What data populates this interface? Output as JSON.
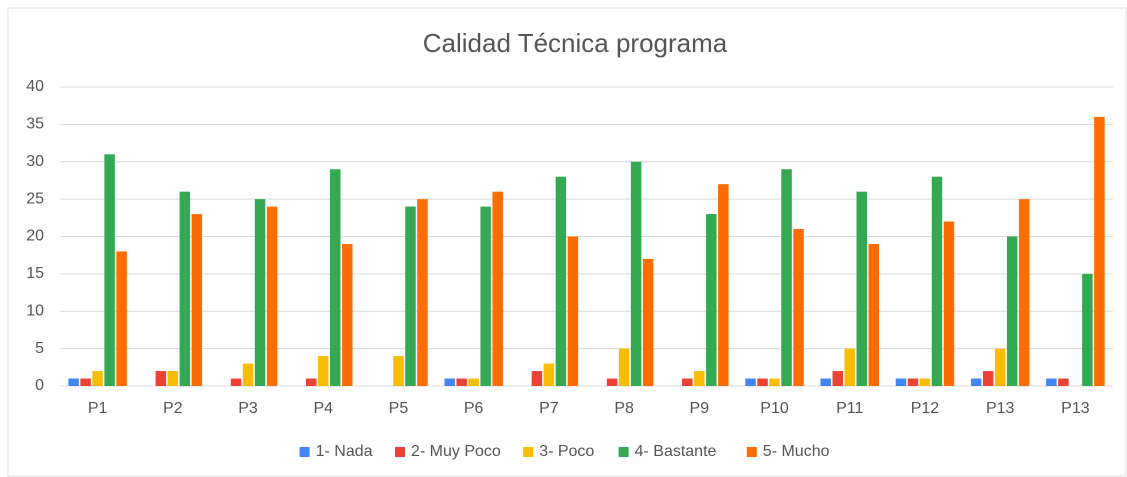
{
  "chart_data": {
    "type": "bar",
    "title": "Calidad Técnica programa",
    "categories": [
      "P1",
      "P2",
      "P3",
      "P4",
      "P5",
      "P6",
      "P7",
      "P8",
      "P9",
      "P10",
      "P11",
      "P12",
      "P13",
      "P13"
    ],
    "series": [
      {
        "name": "1- Nada",
        "color": "#4285f4",
        "values": [
          1,
          0,
          0,
          0,
          0,
          1,
          0,
          0,
          0,
          1,
          1,
          1,
          1,
          1
        ]
      },
      {
        "name": "2- Muy Poco",
        "color": "#ea4335",
        "values": [
          1,
          2,
          1,
          1,
          0,
          1,
          2,
          1,
          1,
          1,
          2,
          1,
          2,
          1
        ]
      },
      {
        "name": "3- Poco",
        "color": "#fbbc04",
        "values": [
          2,
          2,
          3,
          4,
          4,
          1,
          3,
          5,
          2,
          1,
          5,
          1,
          5,
          0
        ]
      },
      {
        "name": "4- Bastante",
        "color": "#34a853",
        "values": [
          31,
          26,
          25,
          29,
          24,
          24,
          28,
          30,
          23,
          29,
          26,
          28,
          20,
          15
        ]
      },
      {
        "name": "5- Mucho",
        "color": "#ff6d01",
        "values": [
          18,
          23,
          24,
          19,
          25,
          26,
          20,
          17,
          27,
          21,
          19,
          22,
          25,
          36
        ]
      }
    ],
    "ylim": [
      0,
      40
    ],
    "yticks": [
      0,
      5,
      10,
      15,
      20,
      25,
      30,
      35,
      40
    ],
    "grid": true,
    "legend": "bottom"
  }
}
